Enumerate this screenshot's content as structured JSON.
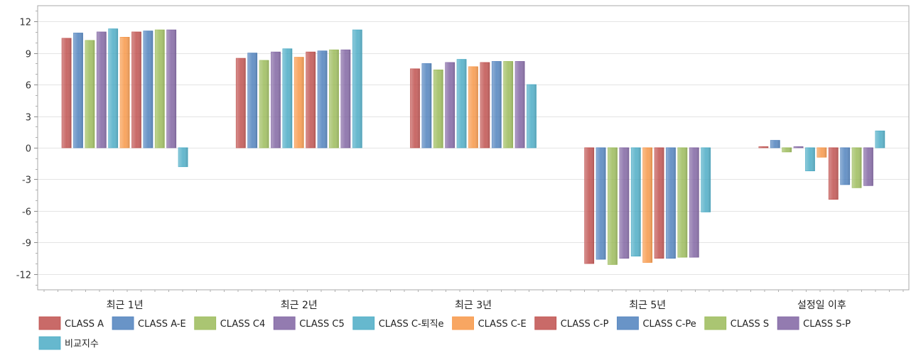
{
  "chart_data": {
    "type": "bar",
    "title": "",
    "xlabel": "",
    "ylabel": "",
    "ylim": [
      -13.5,
      13.5
    ],
    "yticks": [
      12,
      9,
      6,
      3,
      0,
      -3,
      -6,
      -9,
      -12
    ],
    "grid": true,
    "legend_position": "bottom",
    "categories": [
      "최근 1년",
      "최근 2년",
      "최근 3년",
      "최근 5년",
      "설정일 이후"
    ],
    "series": [
      {
        "name": "CLASS A",
        "color": "#c0504d",
        "values": [
          10.4,
          8.5,
          7.5,
          -11.0,
          0.1
        ]
      },
      {
        "name": "CLASS A-E",
        "color": "#4f81bd",
        "values": [
          10.9,
          9.0,
          8.0,
          -10.6,
          0.7
        ]
      },
      {
        "name": "CLASS C4",
        "color": "#9bbb59",
        "values": [
          10.2,
          8.3,
          7.4,
          -11.1,
          -0.4
        ]
      },
      {
        "name": "CLASS C5",
        "color": "#8064a2",
        "values": [
          11.0,
          9.1,
          8.1,
          -10.5,
          0.1
        ]
      },
      {
        "name": "CLASS C-퇴직e",
        "color": "#4bacc6",
        "values": [
          11.3,
          9.4,
          8.4,
          -10.3,
          -2.2
        ]
      },
      {
        "name": "CLASS C-E",
        "color": "#f79646",
        "values": [
          10.5,
          8.6,
          7.7,
          -10.9,
          -0.9
        ]
      },
      {
        "name": "CLASS C-P",
        "color": "#c0504d",
        "values": [
          11.0,
          9.1,
          8.1,
          -10.5,
          -4.9
        ]
      },
      {
        "name": "CLASS C-Pe",
        "color": "#4f81bd",
        "values": [
          11.1,
          9.2,
          8.2,
          -10.5,
          -3.5
        ]
      },
      {
        "name": "CLASS S",
        "color": "#9bbb59",
        "values": [
          11.2,
          9.3,
          8.2,
          -10.4,
          -3.8
        ]
      },
      {
        "name": "CLASS S-P",
        "color": "#8064a2",
        "values": [
          11.2,
          9.3,
          8.2,
          -10.4,
          -3.6
        ]
      },
      {
        "name": "비교지수",
        "color": "#4bacc6",
        "values": [
          -1.8,
          11.2,
          6.0,
          -6.1,
          1.6
        ]
      }
    ]
  }
}
